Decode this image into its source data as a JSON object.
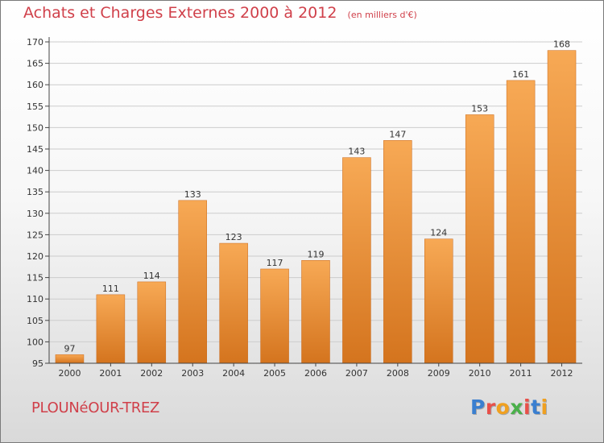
{
  "header": {
    "title": "Achats et Charges Externes 2000 à 2012",
    "unit": "(en milliers d'€)"
  },
  "footer": {
    "commune": "PLOUNéOUR-TREZ",
    "logo_text": "Proxiti"
  },
  "colors": {
    "title": "#d0404a",
    "bar_light": "#f7a955",
    "bar_dark": "#d4741e",
    "grid": "#cccccc",
    "axis": "#444444",
    "logo": [
      "#3a7fd0",
      "#e8504a",
      "#f0a020",
      "#4ab04a",
      "#e8504a",
      "#3a7fd0",
      "#f0a020"
    ]
  },
  "chart_data": {
    "type": "bar",
    "title": "Achats et Charges Externes 2000 à 2012",
    "subtitle": "(en milliers d'€)",
    "xlabel": "",
    "ylabel": "",
    "categories": [
      "2000",
      "2001",
      "2002",
      "2003",
      "2004",
      "2005",
      "2006",
      "2007",
      "2008",
      "2009",
      "2010",
      "2011",
      "2012"
    ],
    "values": [
      97,
      111,
      114,
      133,
      123,
      117,
      119,
      143,
      147,
      124,
      153,
      161,
      168
    ],
    "ylim": [
      95,
      170
    ],
    "yticks": [
      95,
      100,
      105,
      110,
      115,
      120,
      125,
      130,
      135,
      140,
      145,
      150,
      155,
      160,
      165,
      170
    ],
    "grid": true,
    "data_labels": true,
    "legend": "none"
  }
}
